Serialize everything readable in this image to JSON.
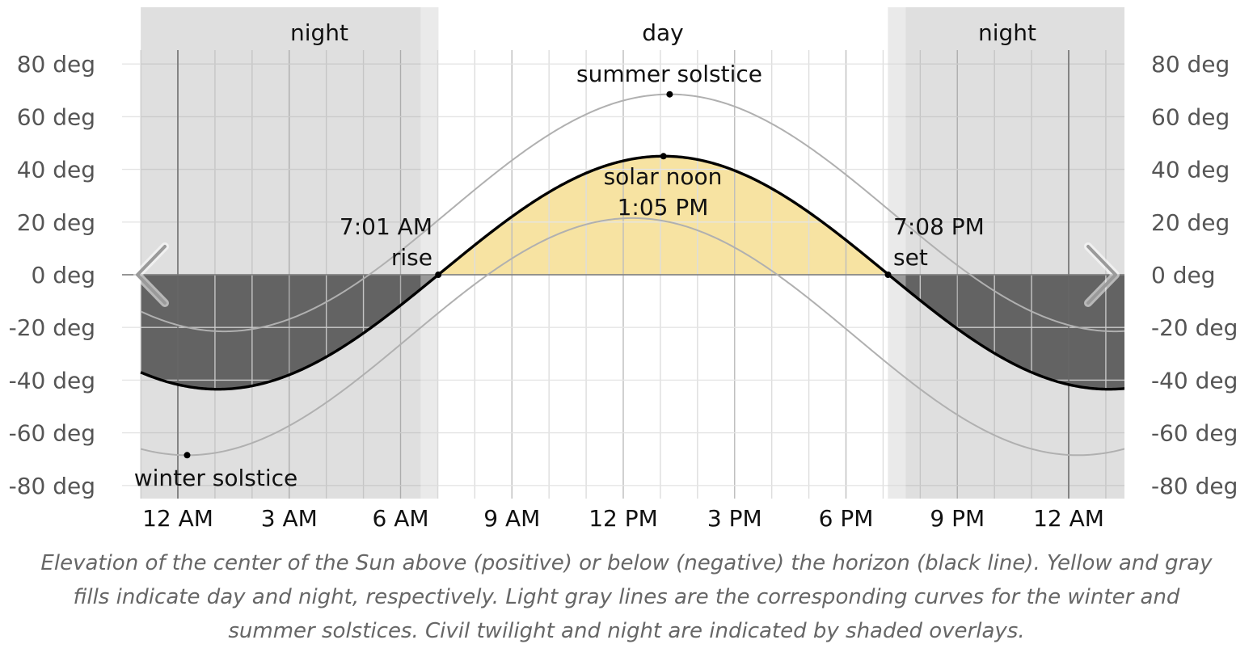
{
  "chart_data": {
    "type": "line",
    "x_unit": "hours since midnight",
    "xlim": [
      -1,
      26
    ],
    "ylim": [
      -85,
      85
    ],
    "y_ticks": [
      80,
      60,
      40,
      20,
      0,
      -20,
      -40,
      -60,
      -80
    ],
    "y_tick_suffix": " deg",
    "x_ticks": [
      {
        "x": 0,
        "label": "12 AM"
      },
      {
        "x": 3,
        "label": "3 AM"
      },
      {
        "x": 6,
        "label": "6 AM"
      },
      {
        "x": 9,
        "label": "9 AM"
      },
      {
        "x": 12,
        "label": "12 PM"
      },
      {
        "x": 15,
        "label": "3 PM"
      },
      {
        "x": 18,
        "label": "6 PM"
      },
      {
        "x": 21,
        "label": "9 PM"
      },
      {
        "x": 24,
        "label": "12 AM"
      }
    ],
    "grid": true,
    "series": [
      {
        "role": "today",
        "solar_noon_x": 13.0833,
        "max_elevation": 45
      },
      {
        "role": "summer-solstice",
        "solar_noon_x": 13.25,
        "max_elevation": 68.5
      },
      {
        "role": "winter-solstice",
        "solar_noon_x": 12.25,
        "max_elevation": 21.5
      }
    ],
    "sunrise_x": 7.0167,
    "sunset_x": 19.1333,
    "bands": [
      {
        "label": "night",
        "x0": -1,
        "x1": 7.02
      },
      {
        "label": "day",
        "x0": 7.02,
        "x1": 19.13
      },
      {
        "label": "night",
        "x0": 19.13,
        "x1": 26
      }
    ],
    "twilight": [
      {
        "x0": 6.54,
        "x1": 7.02
      },
      {
        "x0": 19.13,
        "x1": 19.61
      }
    ],
    "annotations": {
      "rise_time": "7:01 AM",
      "rise_label": "rise",
      "set_time": "7:08 PM",
      "set_label": "set",
      "noon_label": "solar noon",
      "noon_time": "1:05 PM",
      "summer_label": "summer solstice",
      "winter_label": "winter solstice"
    },
    "colors": {
      "day_fill": "#f7e3a2",
      "night_fill": "#5a5a5a",
      "night_overlay": "#d0d0d0",
      "twilight_overlay": "#e2e2e2",
      "solstice_line": "#b0b0b0",
      "curve": "#000000"
    }
  },
  "caption": "Elevation of the center of the Sun above (positive) or below (negative) the horizon (black line). Yellow and gray fills indicate day and night, respectively. Light gray lines are the corresponding curves for the winter and summer solstices. Civil twilight and night are indicated by shaded overlays.",
  "nav": {
    "prev_icon": "chevron-left-icon",
    "next_icon": "chevron-right-icon"
  }
}
